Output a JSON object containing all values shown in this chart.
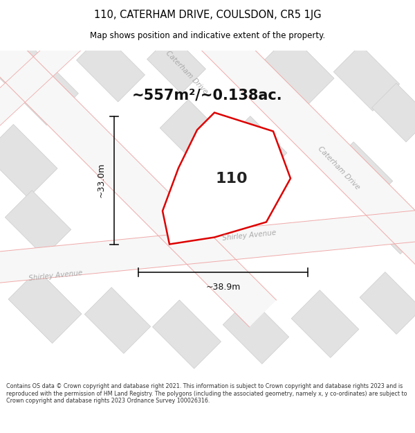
{
  "title": "110, CATERHAM DRIVE, COULSDON, CR5 1JG",
  "subtitle": "Map shows position and indicative extent of the property.",
  "area_text": "~557m²/~0.138ac.",
  "width_label": "~38.9m",
  "height_label": "~33.0m",
  "number_label": "110",
  "footer_text": "Contains OS data © Crown copyright and database right 2021. This information is subject to Crown copyright and database rights 2023 and is reproduced with the permission of HM Land Registry. The polygons (including the associated geometry, namely x, y co-ordinates) are subject to Crown copyright and database rights 2023 Ordnance Survey 100026316.",
  "bg_color": "#ffffff",
  "map_bg": "#f7f7f7",
  "building_color": "#e2e2e2",
  "building_edge": "#cccccc",
  "road_line_color": "#f0aaaa",
  "property_color": "#dd0000",
  "street_label_color": "#aaaaaa",
  "title_color": "#000000",
  "footer_color": "#333333",
  "dim_color": "#111111"
}
